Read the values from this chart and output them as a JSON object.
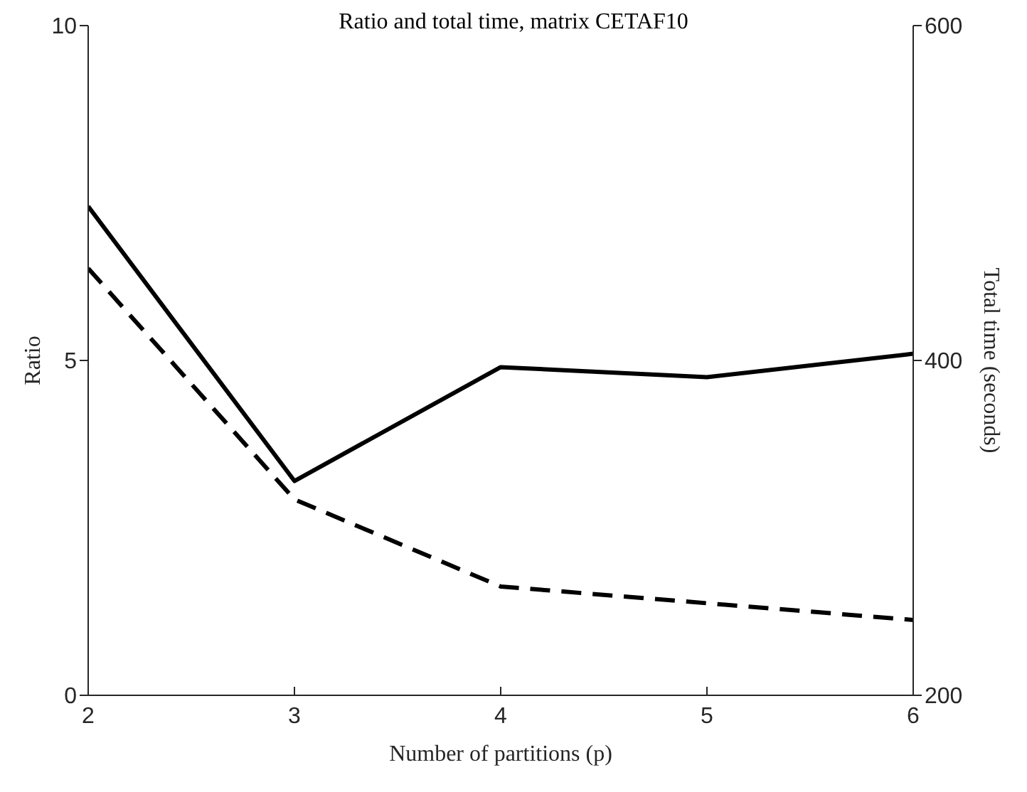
{
  "chart_data": {
    "type": "line",
    "title": "Ratio and total time, matrix CETAF10",
    "xlabel": "Number of partitions (p)",
    "ylabel": "Ratio",
    "y2label": "Total time (seconds)",
    "x": [
      2,
      3,
      4,
      5,
      6
    ],
    "xlim": [
      2,
      6
    ],
    "xticks": [
      2,
      3,
      4,
      5,
      6
    ],
    "ylim": [
      0,
      10
    ],
    "yticks": [
      0,
      5,
      10
    ],
    "y2lim": [
      200,
      600
    ],
    "y2ticks": [
      200,
      400,
      600
    ],
    "marker": "none",
    "series": [
      {
        "color": "#000000",
        "line_style": "solid",
        "values": [
          7.3,
          3.2,
          4.9,
          4.75,
          5.1
        ]
      },
      {
        "color": "#000000",
        "line_style": "dashed",
        "axis": "y2",
        "values": [
          455,
          317,
          265,
          255,
          245
        ]
      }
    ]
  }
}
